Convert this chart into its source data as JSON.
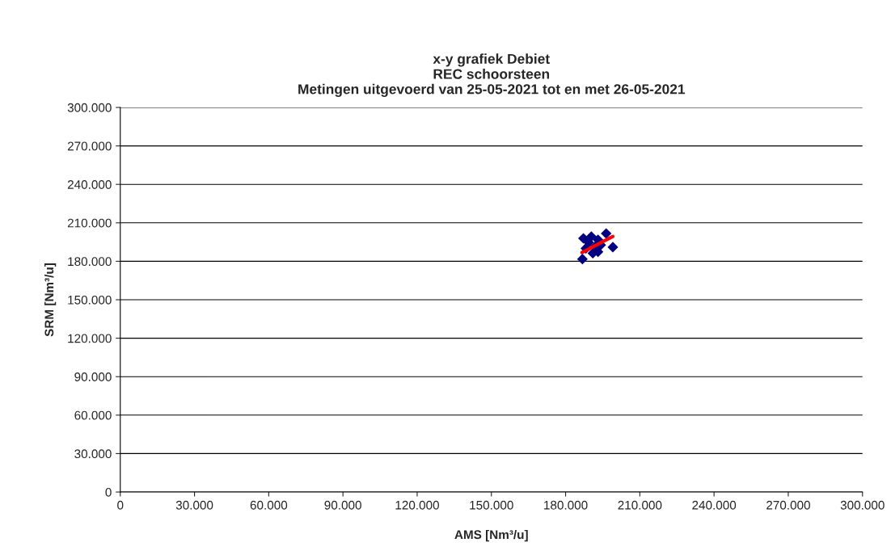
{
  "chart_data": {
    "type": "scatter",
    "title": "x-y grafiek Debiet\nREC schoorsteen\nMetingen uitgevoerd van 25-05-2021 tot en met 26-05-2021",
    "xlabel": "AMS [Nm³/u]",
    "ylabel": "SRM [Nm³/u]",
    "xlim": [
      0,
      300000
    ],
    "ylim": [
      0,
      300000
    ],
    "xticks": [
      0,
      {
        "value": 30000,
        "label": "30.000"
      },
      {
        "value": 60000,
        "label": "60.000"
      },
      {
        "value": 90000,
        "label": "90.000"
      },
      {
        "value": 120000,
        "label": "120.000"
      },
      {
        "value": 150000,
        "label": "150.000"
      },
      {
        "value": 180000,
        "label": "180.000"
      },
      {
        "value": 210000,
        "label": "210.000"
      },
      {
        "value": 240000,
        "label": "240.000"
      },
      {
        "value": 270000,
        "label": "270.000"
      },
      {
        "value": 300000,
        "label": "300.000"
      }
    ],
    "yticks": [
      0,
      {
        "value": 30000,
        "label": "30.000"
      },
      {
        "value": 60000,
        "label": "60.000"
      },
      {
        "value": 90000,
        "label": "90.000"
      },
      {
        "value": 120000,
        "label": "120.000"
      },
      {
        "value": 150000,
        "label": "150.000"
      },
      {
        "value": 180000,
        "label": "180.000"
      },
      {
        "value": 210000,
        "label": "210.000"
      },
      {
        "value": 240000,
        "label": "240.000"
      },
      {
        "value": 270000,
        "label": "270.000"
      },
      {
        "value": 300000,
        "label": "300.000"
      }
    ],
    "grid": "y",
    "legend": false,
    "series": [
      {
        "marker": "diamond",
        "color": "#000080",
        "x": [
          187200,
          190400,
          196400,
          199100,
          186800,
          188200,
          193100,
          191000,
          193100,
          194200,
          189300,
          192000
        ],
        "values": [
          197900,
          199300,
          201700,
          191000,
          181700,
          190100,
          196800,
          186300,
          187400,
          192700,
          194700,
          191600
        ]
      },
      {
        "type": "line",
        "color": "#ff0000",
        "x": [
          186600,
          199100
        ],
        "values": [
          186800,
          199400
        ]
      }
    ]
  }
}
